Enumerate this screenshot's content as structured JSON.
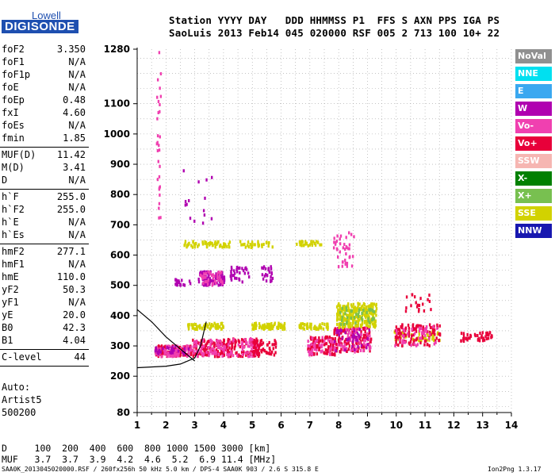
{
  "logo": {
    "top": "Lowell",
    "bottom": "DIGISONDE"
  },
  "header": {
    "line1": "Station YYYY DAY   DDD HHMMSS P1  FFS S AXN PPS IGA PS",
    "line2": "SaoLuis 2013 Feb14 045 020000 RSF 005 2 713 100 10+ 22"
  },
  "params": [
    {
      "name": "foF2",
      "value": "3.350"
    },
    {
      "name": "foF1",
      "value": "N/A"
    },
    {
      "name": "foF1p",
      "value": "N/A"
    },
    {
      "name": "foE",
      "value": "N/A"
    },
    {
      "name": "foEp",
      "value": "0.48"
    },
    {
      "name": "fxI",
      "value": "4.60"
    },
    {
      "name": "foEs",
      "value": "N/A"
    },
    {
      "name": "fmin",
      "value": "1.85"
    },
    {
      "name": "MUF(D)",
      "value": "11.42"
    },
    {
      "name": "M(D)",
      "value": "3.41"
    },
    {
      "name": "D",
      "value": "N/A"
    },
    {
      "name": "h`F",
      "value": "255.0"
    },
    {
      "name": "h`F2",
      "value": "255.0"
    },
    {
      "name": "h`E",
      "value": "N/A"
    },
    {
      "name": "h`Es",
      "value": "N/A"
    },
    {
      "name": "hmF2",
      "value": "277.1"
    },
    {
      "name": "hmF1",
      "value": "N/A"
    },
    {
      "name": "hmE",
      "value": "110.0"
    },
    {
      "name": "yF2",
      "value": "50.3"
    },
    {
      "name": "yF1",
      "value": "N/A"
    },
    {
      "name": "yE",
      "value": "20.0"
    },
    {
      "name": "B0",
      "value": "42.3"
    },
    {
      "name": "B1",
      "value": "4.04"
    },
    {
      "name": "C-level",
      "value": "44"
    }
  ],
  "auto": [
    "Auto:",
    "Artist5",
    "500200"
  ],
  "legend": [
    {
      "label": "NoVal",
      "color": "#909090",
      "text": "#ffffff"
    },
    {
      "label": "NNE",
      "color": "#00e0f0",
      "text": "#ffffff"
    },
    {
      "label": "E",
      "color": "#3aa8f0",
      "text": "#ffffff"
    },
    {
      "label": "W",
      "color": "#b000b0",
      "text": "#ffffff"
    },
    {
      "label": "Vo-",
      "color": "#f040b0",
      "text": "#ffffff"
    },
    {
      "label": "Vo+",
      "color": "#e8003a",
      "text": "#ffffff"
    },
    {
      "label": "SSW",
      "color": "#f6b6b2",
      "text": "#ffffff"
    },
    {
      "label": "X-",
      "color": "#008000",
      "text": "#ffffff"
    },
    {
      "label": "X+",
      "color": "#78c050",
      "text": "#ffffff"
    },
    {
      "label": "SSE",
      "color": "#d2d200",
      "text": "#ffffff"
    },
    {
      "label": "NNW",
      "color": "#1818b0",
      "text": "#ffffff"
    }
  ],
  "muf_table": {
    "line1": "D     100  200  400  600  800 1000 1500 3000 [km]",
    "line2": "MUF   3.7  3.7  3.9  4.2  4.6  5.2  6.9 11.4 [MHz]"
  },
  "footer": {
    "left": "SAA0K_2013045020000.RSF / 260fx256h 50 kHz 5.0 km / DPS-4 SAA0K 903 / 2.6 S 315.8 E",
    "right": "Ion2Png 1.3.17"
  },
  "chart_data": {
    "type": "scatter",
    "xlim": [
      1,
      14
    ],
    "ylim": [
      80,
      1280
    ],
    "x_ticks": [
      1,
      2,
      3,
      4,
      5,
      6,
      7,
      8,
      9,
      10,
      11,
      12,
      13,
      14
    ],
    "y_ticks": [
      80,
      200,
      300,
      400,
      500,
      600,
      700,
      800,
      900,
      1000,
      1100,
      1280
    ],
    "grid": true,
    "clusters": [
      {
        "color": "#e8003a",
        "x": [
          1.6,
          2.9
        ],
        "y": [
          265,
          300
        ],
        "n": 110
      },
      {
        "color": "#f040b0",
        "x": [
          1.6,
          2.9
        ],
        "y": [
          265,
          300
        ],
        "n": 70
      },
      {
        "color": "#b000b0",
        "x": [
          1.6,
          2.9
        ],
        "y": [
          270,
          300
        ],
        "n": 30
      },
      {
        "color": "#e8003a",
        "x": [
          2.9,
          4.2
        ],
        "y": [
          265,
          320
        ],
        "n": 120
      },
      {
        "color": "#f040b0",
        "x": [
          2.9,
          4.2
        ],
        "y": [
          265,
          320
        ],
        "n": 70
      },
      {
        "color": "#e8003a",
        "x": [
          4.1,
          5.2
        ],
        "y": [
          265,
          325
        ],
        "n": 90
      },
      {
        "color": "#f040b0",
        "x": [
          4.1,
          5.2
        ],
        "y": [
          265,
          325
        ],
        "n": 50
      },
      {
        "color": "#e8003a",
        "x": [
          5.0,
          5.8
        ],
        "y": [
          270,
          320
        ],
        "n": 60
      },
      {
        "color": "#d2d200",
        "x": [
          4.9,
          6.1
        ],
        "y": [
          355,
          375
        ],
        "n": 80
      },
      {
        "color": "#d2d200",
        "x": [
          2.7,
          4.0
        ],
        "y": [
          355,
          375
        ],
        "n": 60
      },
      {
        "color": "#e8003a",
        "x": [
          6.9,
          7.9
        ],
        "y": [
          270,
          330
        ],
        "n": 90
      },
      {
        "color": "#f040b0",
        "x": [
          6.9,
          7.9
        ],
        "y": [
          270,
          330
        ],
        "n": 40
      },
      {
        "color": "#d2d200",
        "x": [
          6.6,
          7.6
        ],
        "y": [
          355,
          375
        ],
        "n": 50
      },
      {
        "color": "#e8003a",
        "x": [
          7.8,
          9.1
        ],
        "y": [
          280,
          360
        ],
        "n": 130
      },
      {
        "color": "#f040b0",
        "x": [
          7.8,
          9.1
        ],
        "y": [
          280,
          360
        ],
        "n": 70
      },
      {
        "color": "#b000b0",
        "x": [
          7.8,
          9.1
        ],
        "y": [
          280,
          360
        ],
        "n": 40
      },
      {
        "color": "#d2d200",
        "x": [
          7.9,
          9.3
        ],
        "y": [
          360,
          440
        ],
        "n": 260
      },
      {
        "color": "#78c050",
        "x": [
          8.0,
          9.2
        ],
        "y": [
          370,
          430
        ],
        "n": 40
      },
      {
        "color": "#d2d200",
        "x": [
          9.9,
          11.5
        ],
        "y": [
          315,
          350
        ],
        "n": 50
      },
      {
        "color": "#e8003a",
        "x": [
          9.9,
          11.5
        ],
        "y": [
          300,
          370
        ],
        "n": 110
      },
      {
        "color": "#f040b0",
        "x": [
          9.9,
          11.5
        ],
        "y": [
          300,
          370
        ],
        "n": 40
      },
      {
        "color": "#e8003a",
        "x": [
          12.2,
          13.3
        ],
        "y": [
          315,
          345
        ],
        "n": 45
      },
      {
        "color": "#b000b0",
        "x": [
          3.1,
          4.0
        ],
        "y": [
          500,
          545
        ],
        "n": 80
      },
      {
        "color": "#f040b0",
        "x": [
          3.1,
          4.0
        ],
        "y": [
          500,
          545
        ],
        "n": 40
      },
      {
        "color": "#b000b0",
        "x": [
          2.3,
          2.9
        ],
        "y": [
          500,
          520
        ],
        "n": 20
      },
      {
        "color": "#b000b0",
        "x": [
          4.2,
          4.9
        ],
        "y": [
          510,
          560
        ],
        "n": 30
      },
      {
        "color": "#b000b0",
        "x": [
          5.3,
          5.7
        ],
        "y": [
          510,
          570
        ],
        "n": 25
      },
      {
        "color": "#d2d200",
        "x": [
          2.6,
          4.2
        ],
        "y": [
          625,
          645
        ],
        "n": 60
      },
      {
        "color": "#d2d200",
        "x": [
          4.5,
          5.7
        ],
        "y": [
          625,
          645
        ],
        "n": 30
      },
      {
        "color": "#d2d200",
        "x": [
          6.5,
          7.4
        ],
        "y": [
          630,
          645
        ],
        "n": 30
      },
      {
        "color": "#f040b0",
        "x": [
          7.8,
          8.5
        ],
        "y": [
          560,
          680
        ],
        "n": 40
      },
      {
        "color": "#e8003a",
        "x": [
          10.3,
          11.2
        ],
        "y": [
          410,
          480
        ],
        "n": 20
      },
      {
        "color": "#f040b0",
        "x": [
          1.65,
          1.8
        ],
        "y": [
          700,
          1280
        ],
        "n": 30
      },
      {
        "color": "#b000b0",
        "x": [
          2.5,
          3.6
        ],
        "y": [
          700,
          880
        ],
        "n": 15
      }
    ],
    "traces": [
      {
        "name": "",
        "color": "#000000",
        "x": [
          1.0,
          2.0,
          2.5,
          3.0,
          3.2,
          3.4
        ],
        "y": [
          228,
          233,
          240,
          260,
          300,
          380
        ]
      },
      {
        "name": "",
        "color": "#000000",
        "x": [
          1.0,
          1.5,
          2.0,
          2.5,
          3.0
        ],
        "y": [
          420,
          380,
          330,
          290,
          250
        ]
      }
    ]
  }
}
